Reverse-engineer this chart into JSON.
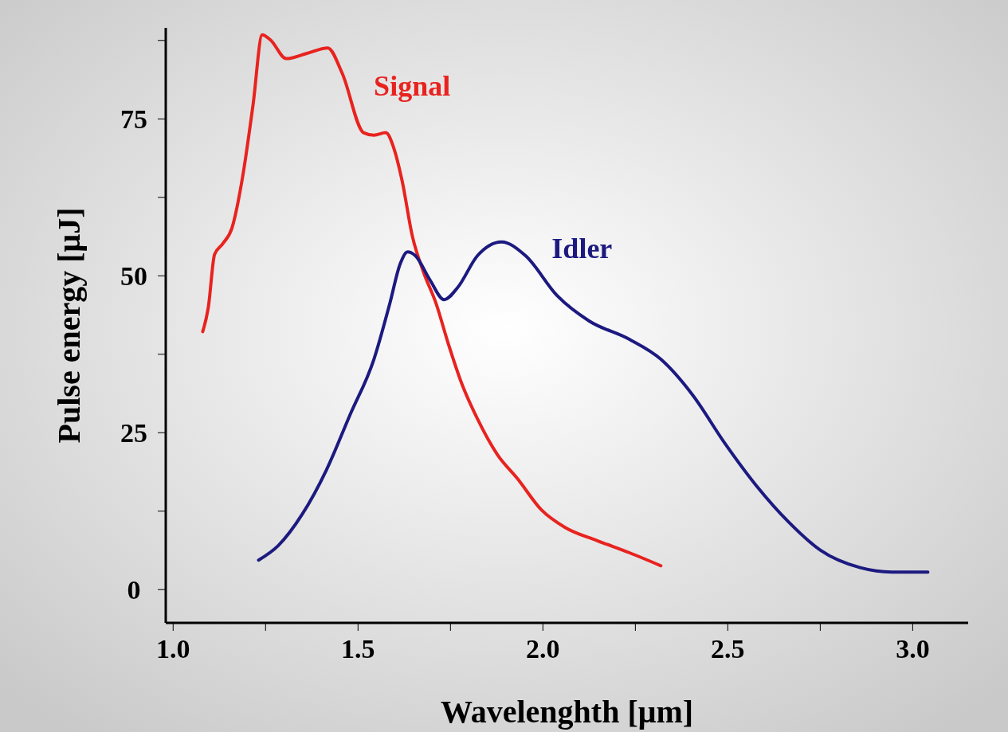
{
  "chart_data": {
    "type": "line",
    "xlabel": "Wavelenghth [μm]",
    "ylabel": "Pulse energy [μJ]",
    "xlim": [
      0.98,
      3.15
    ],
    "ylim": [
      -5.3,
      89.5
    ],
    "xticks": [
      {
        "value": 1.0,
        "label": "1.0"
      },
      {
        "value": 1.25,
        "label": null
      },
      {
        "value": 1.5,
        "label": "1.5"
      },
      {
        "value": 1.75,
        "label": null
      },
      {
        "value": 2.0,
        "label": "2.0"
      },
      {
        "value": 2.25,
        "label": null
      },
      {
        "value": 2.5,
        "label": "2.5"
      },
      {
        "value": 2.75,
        "label": null
      },
      {
        "value": 3.0,
        "label": "3.0"
      }
    ],
    "yticks": [
      0,
      {
        "value": 12.5,
        "label": null
      },
      25,
      {
        "value": 37.5,
        "label": null
      },
      50,
      {
        "value": 62.5,
        "label": null
      },
      75,
      {
        "value": 87.5,
        "label": null
      }
    ],
    "grid": false,
    "marker": "none",
    "line_style": "solid",
    "series": [
      {
        "name": "Signal",
        "color": "#e8231f",
        "x": [
          1.08,
          1.095,
          1.112,
          1.134,
          1.159,
          1.188,
          1.216,
          1.241,
          1.263,
          1.306,
          1.36,
          1.418,
          1.457,
          1.515,
          1.543,
          1.575,
          1.597,
          1.619,
          1.647,
          1.677,
          1.711,
          1.744,
          1.78,
          1.823,
          1.877,
          1.931,
          1.996,
          2.06,
          2.147,
          2.233,
          2.319
        ],
        "values": [
          41.1,
          44.9,
          53.4,
          55.1,
          57.6,
          65.8,
          77.2,
          88.4,
          87.6,
          84.6,
          85.4,
          86.3,
          82.3,
          72.8,
          72.4,
          72.8,
          70.3,
          65.2,
          56.3,
          50.6,
          45.6,
          39.2,
          32.9,
          27.2,
          21.5,
          17.7,
          12.7,
          9.9,
          7.8,
          5.9,
          3.8
        ]
      },
      {
        "name": "Idler",
        "color": "#1c1a80",
        "x": [
          1.231,
          1.284,
          1.349,
          1.414,
          1.478,
          1.543,
          1.586,
          1.614,
          1.634,
          1.655,
          1.694,
          1.733,
          1.769,
          1.823,
          1.888,
          1.953,
          2.039,
          2.125,
          2.233,
          2.319,
          2.405,
          2.491,
          2.578,
          2.664,
          2.75,
          2.858,
          2.944,
          3.041
        ],
        "values": [
          4.7,
          7.0,
          12.0,
          19.0,
          27.8,
          36.7,
          45.6,
          51.9,
          53.8,
          53.2,
          49.4,
          46.2,
          48.1,
          53.2,
          55.4,
          53.2,
          46.8,
          42.8,
          39.9,
          36.7,
          31.0,
          23.4,
          16.5,
          10.8,
          6.3,
          3.5,
          2.8,
          2.8
        ]
      }
    ]
  }
}
